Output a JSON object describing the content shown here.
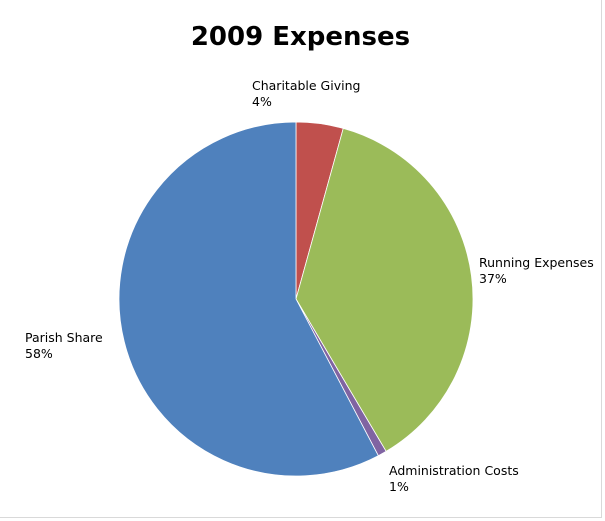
{
  "chart_data": {
    "type": "pie",
    "title": "2009 Expenses",
    "slices": [
      {
        "label": "Charitable Giving",
        "pct_label": "4%",
        "value": 4.3,
        "color": "#c0504d"
      },
      {
        "label": "Running Expenses",
        "pct_label": "37%",
        "value": 37.2,
        "color": "#9bbb59"
      },
      {
        "label": "Administration Costs",
        "pct_label": "1%",
        "value": 0.8,
        "color": "#8064a2"
      },
      {
        "label": "Parish Share",
        "pct_label": "58%",
        "value": 57.7,
        "color": "#4f81bd"
      }
    ],
    "start_angle_deg": 0,
    "direction": "clockwise",
    "legend": "none",
    "labels": "outside"
  }
}
